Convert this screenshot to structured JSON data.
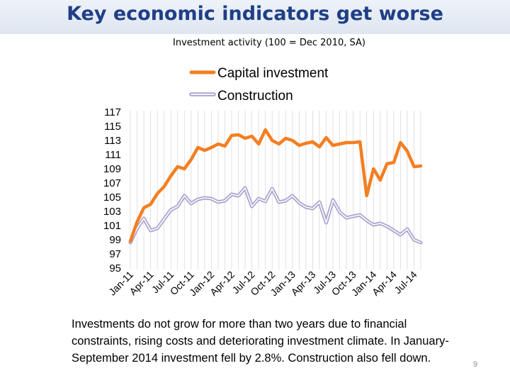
{
  "slide": {
    "title": "Key economic indicators get worse",
    "caption": "Investments do not grow for more than two years due to financial constraints, rising costs and deteriorating investment climate. In January-September 2014 investment fell by 2.8%. Construction also fell down.",
    "page_number": "9"
  },
  "colors": {
    "capital": "#f47e20",
    "construction_outer": "#a9a2cf",
    "construction_inner": "#ffffff",
    "title": "#1f3f86",
    "grid": "#d9d9d9"
  },
  "chart_data": {
    "type": "line",
    "title": "Investment activity (100 = Dec 2010, SA)",
    "xlabel": "",
    "ylabel": "",
    "ylim": [
      95,
      117
    ],
    "y_ticks": [
      "117",
      "115",
      "113",
      "111",
      "109",
      "107",
      "105",
      "103",
      "101",
      "99",
      "97",
      "95"
    ],
    "x_tick_labels": [
      "Jan-11",
      "Apr-11",
      "Jul-11",
      "Oct-11",
      "Jan-12",
      "Apr-12",
      "Jul-12",
      "Oct-12",
      "Jan-13",
      "Apr-13",
      "Jul-13",
      "Oct-13",
      "Jan-14",
      "Apr-14",
      "Jul-14"
    ],
    "legend_position": "top",
    "series": [
      {
        "name": "Capital investment",
        "values": [
          98.8,
          101.5,
          103.5,
          104.0,
          105.5,
          106.5,
          108.0,
          109.3,
          109.0,
          110.3,
          112.0,
          111.6,
          112.0,
          112.5,
          112.2,
          113.7,
          113.8,
          113.3,
          113.6,
          112.5,
          114.5,
          113.0,
          112.5,
          113.3,
          113.0,
          112.3,
          112.6,
          112.8,
          112.1,
          113.4,
          112.3,
          112.5,
          112.7,
          112.7,
          112.8,
          105.2,
          109.0,
          107.4,
          109.7,
          109.9,
          112.7,
          111.5,
          109.3,
          109.4
        ]
      },
      {
        "name": "Construction",
        "values": [
          98.6,
          100.6,
          102.0,
          100.3,
          100.6,
          101.9,
          103.2,
          103.7,
          105.2,
          104.1,
          104.7,
          104.9,
          104.8,
          104.3,
          104.5,
          105.4,
          105.2,
          106.3,
          103.7,
          104.8,
          104.4,
          106.2,
          104.3,
          104.5,
          105.2,
          104.2,
          103.6,
          103.4,
          104.3,
          101.4,
          104.6,
          102.9,
          102.1,
          102.3,
          102.5,
          101.7,
          101.1,
          101.3,
          100.9,
          100.3,
          99.7,
          100.5,
          99.0,
          98.6
        ]
      }
    ]
  }
}
